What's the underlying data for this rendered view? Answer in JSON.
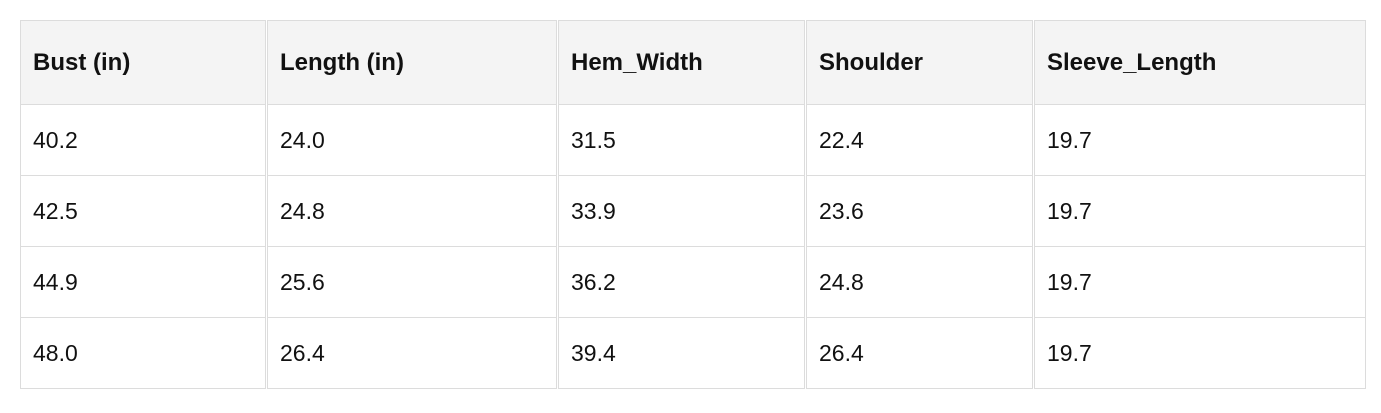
{
  "table": {
    "headers": [
      "Bust (in)",
      "Length (in)",
      "Hem_Width",
      "Shoulder",
      "Sleeve_Length"
    ],
    "rows": [
      [
        "40.2",
        "24.0",
        "31.5",
        "22.4",
        "19.7"
      ],
      [
        "42.5",
        "24.8",
        "33.9",
        "23.6",
        "19.7"
      ],
      [
        "44.9",
        "25.6",
        "36.2",
        "24.8",
        "19.7"
      ],
      [
        "48.0",
        "26.4",
        "39.4",
        "26.4",
        "19.7"
      ]
    ]
  }
}
